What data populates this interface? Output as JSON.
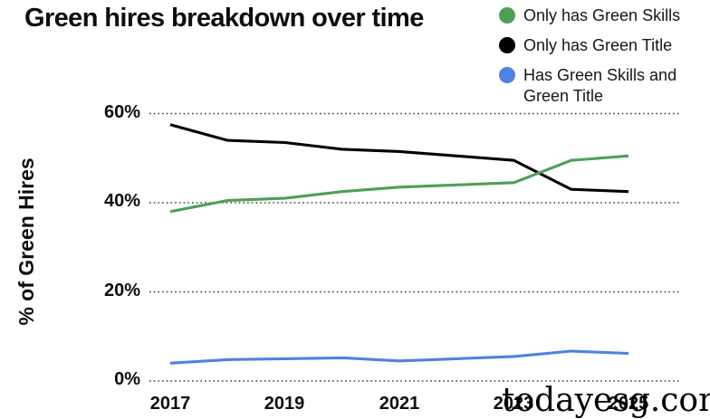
{
  "title": "Green hires breakdown over time",
  "watermark": "todayesg.com",
  "legend": {
    "items": [
      {
        "label": "Only has Green Skills"
      },
      {
        "label": "Only has Green Title"
      },
      {
        "label": "Has Green Skills and Green Title"
      }
    ]
  },
  "chart_data": {
    "type": "line",
    "title": "Green hires breakdown over time",
    "xlabel": "",
    "ylabel": "% of Green Hires",
    "x": [
      2017,
      2018,
      2019,
      2020,
      2021,
      2022,
      2023,
      2024,
      2025
    ],
    "series": [
      {
        "name": "Only has Green Skills",
        "color": "#4f9e58",
        "values": [
          38,
          40.5,
          41,
          42.5,
          43.5,
          44,
          44.5,
          49.5,
          50.5
        ]
      },
      {
        "name": "Only has Green Title",
        "color": "#000000",
        "values": [
          57.5,
          54,
          53.5,
          52,
          51.5,
          50.5,
          49.5,
          43,
          42.5
        ]
      },
      {
        "name": "Has Green Skills and Green Title",
        "color": "#4d82e0",
        "values": [
          4,
          4.8,
          5,
          5.2,
          4.5,
          5,
          5.5,
          6.7,
          6.2
        ]
      }
    ],
    "ylim": [
      0,
      65
    ],
    "grid": "horizontal-dotted",
    "legend_position": "top-right",
    "yticks": [
      {
        "value": 60,
        "label": "60%"
      },
      {
        "value": 40,
        "label": "40%"
      },
      {
        "value": 20,
        "label": "20%"
      },
      {
        "value": 0,
        "label": "0%"
      }
    ],
    "xticks": [
      {
        "value": 2017,
        "label": "2017"
      },
      {
        "value": 2019,
        "label": "2019"
      },
      {
        "value": 2021,
        "label": "2021"
      },
      {
        "value": 2023,
        "label": "2023"
      },
      {
        "value": 2025,
        "label": "2025"
      }
    ]
  }
}
